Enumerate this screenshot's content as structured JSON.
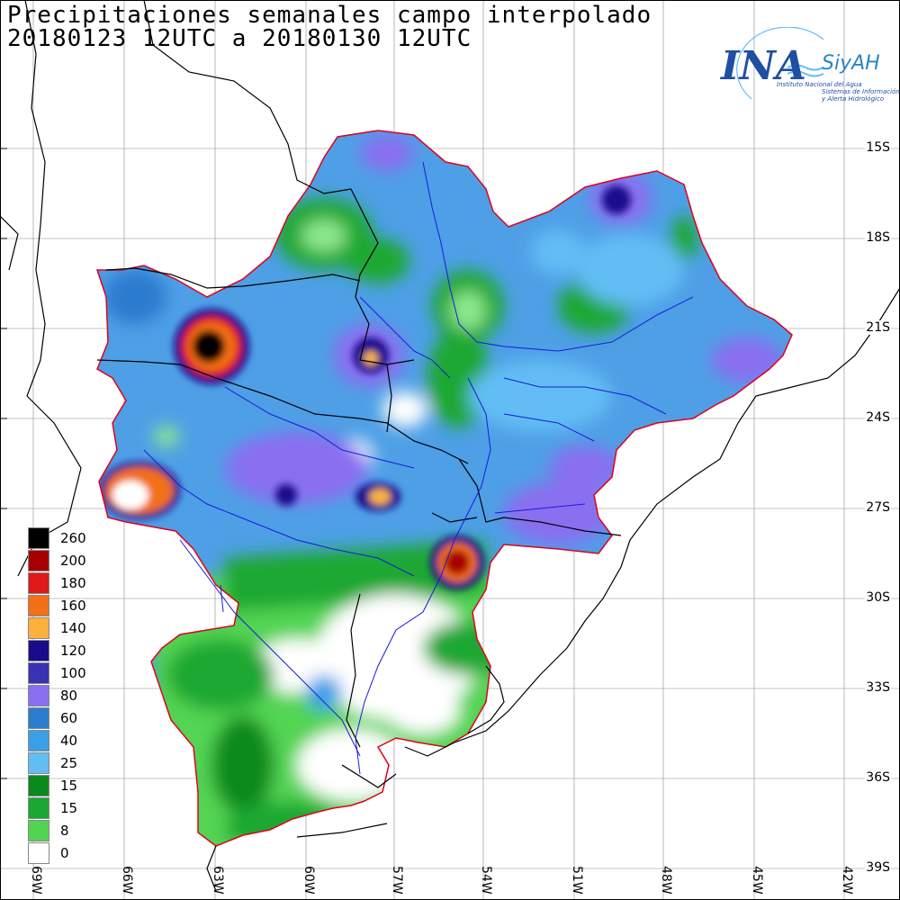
{
  "header": {
    "title_line1": "Precipitaciones semanales campo interpolado",
    "title_line2": "20180123 12UTC a 20180130 12UTC"
  },
  "logo": {
    "ina_text": "INA",
    "siyah_text": "SiyAH",
    "subtitle_1": "Instituto Nacional del Agua",
    "subtitle_2": "Sistemas de Información y Alerta Hidrológico",
    "colors": {
      "primary": "#1f4fa0",
      "secondary": "#2a86c6"
    }
  },
  "map": {
    "lat_labels": [
      "15S",
      "18S",
      "21S",
      "24S",
      "27S",
      "30S",
      "33S",
      "36S",
      "39S"
    ],
    "lon_labels": [
      "69W",
      "66W",
      "63W",
      "60W",
      "57W",
      "54W",
      "51W",
      "48W",
      "45W",
      "42W"
    ],
    "colors": {
      "basin_outline": "#e0001b",
      "rivers": "#1a1adc",
      "borders": "#000000",
      "graticule": "#8a8a8a"
    }
  },
  "legend": {
    "items": [
      {
        "label": "260",
        "color": "#000000"
      },
      {
        "label": "200",
        "color": "#a80000"
      },
      {
        "label": "180",
        "color": "#e01a1a"
      },
      {
        "label": "160",
        "color": "#f27018"
      },
      {
        "label": "140",
        "color": "#fbb13c"
      },
      {
        "label": "120",
        "color": "#1a0a8c"
      },
      {
        "label": "100",
        "color": "#3a32b4"
      },
      {
        "label": "80",
        "color": "#8a6ef0"
      },
      {
        "label": "60",
        "color": "#2c7ccf"
      },
      {
        "label": "40",
        "color": "#3d9ee8"
      },
      {
        "label": "25",
        "color": "#62bdf5"
      },
      {
        "label": "15",
        "color": "#0a8a1e"
      },
      {
        "label": "15",
        "color": "#1aa832"
      },
      {
        "label": "8",
        "color": "#52d452"
      },
      {
        "label": "0",
        "color": "#ffffff"
      }
    ]
  }
}
